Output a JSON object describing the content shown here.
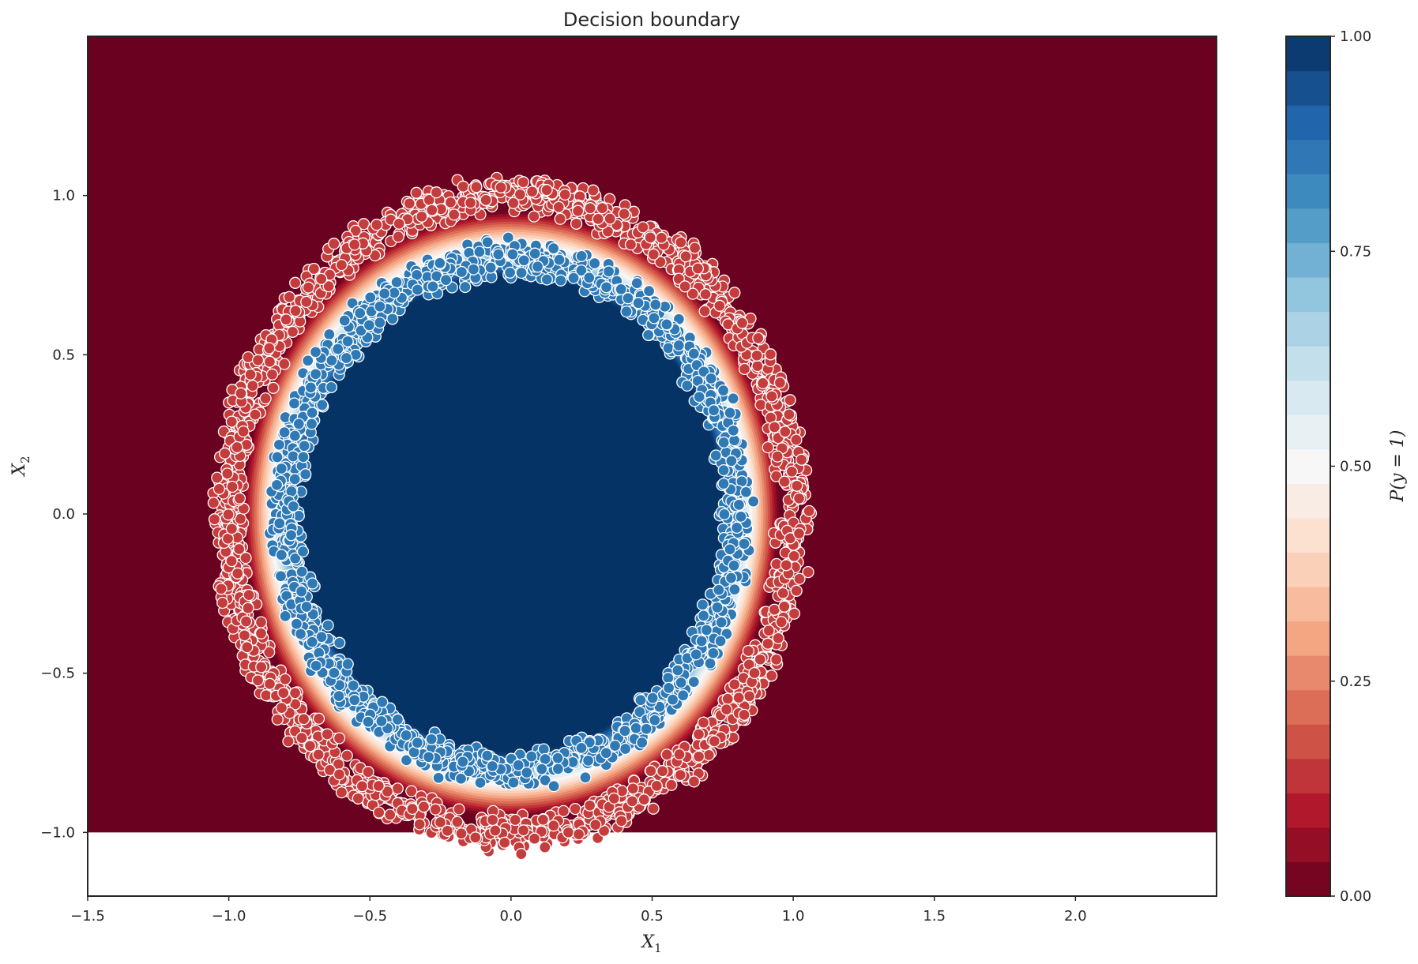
{
  "chart_data": {
    "type": "heatmap",
    "title": "Decision boundary",
    "xlabel": "X",
    "xlabel_subscript": "1",
    "ylabel": "X",
    "ylabel_subscript": "2",
    "xlim": [
      -1.5,
      2.5
    ],
    "ylim": [
      -1.2,
      1.5
    ],
    "xticks": [
      -1.5,
      -1.0,
      -0.5,
      0.0,
      0.5,
      1.0,
      1.5,
      2.0
    ],
    "xtick_labels": [
      "−1.5",
      "−1.0",
      "−0.5",
      "0.0",
      "0.5",
      "1.0",
      "1.5",
      "2.0"
    ],
    "yticks": [
      -1.0,
      -0.5,
      0.0,
      0.5,
      1.0
    ],
    "ytick_labels": [
      "−1.0",
      "−0.5",
      "0.0",
      "0.5",
      "1.0"
    ],
    "probability_grid_extent": {
      "x": [
        -1.5,
        2.5
      ],
      "y": [
        -1.0,
        1.5
      ]
    },
    "decision_surface": {
      "center": [
        0.0,
        0.0
      ],
      "inner_radius": 0.75,
      "outer_radius": 0.95
    },
    "series": [
      {
        "class": 1,
        "color": "#2f79b5",
        "ring_center": [
          0.0,
          0.0
        ],
        "radius_range": [
          0.73,
          0.87
        ]
      },
      {
        "class": 0,
        "color": "#c43c3c",
        "ring_center": [
          0.0,
          0.0
        ],
        "radius_range": [
          0.93,
          1.07
        ]
      }
    ],
    "point_edge_color": "#ffffff",
    "colorbar": {
      "label": "P(y = 1)",
      "range": [
        0.0,
        1.0
      ],
      "levels": 25,
      "ticks": [
        0.0,
        0.25,
        0.5,
        0.75,
        1.0
      ],
      "tick_labels": [
        "0.00",
        "0.25",
        "0.50",
        "0.75",
        "1.00"
      ],
      "colormap": "RdBu",
      "colors": [
        "#67001f",
        "#b2182b",
        "#d6604d",
        "#f4a582",
        "#fddbc7",
        "#f7f7f7",
        "#d1e5f0",
        "#92c5de",
        "#4393c3",
        "#2166ac",
        "#053061"
      ]
    },
    "grid": false,
    "legend": "none"
  }
}
